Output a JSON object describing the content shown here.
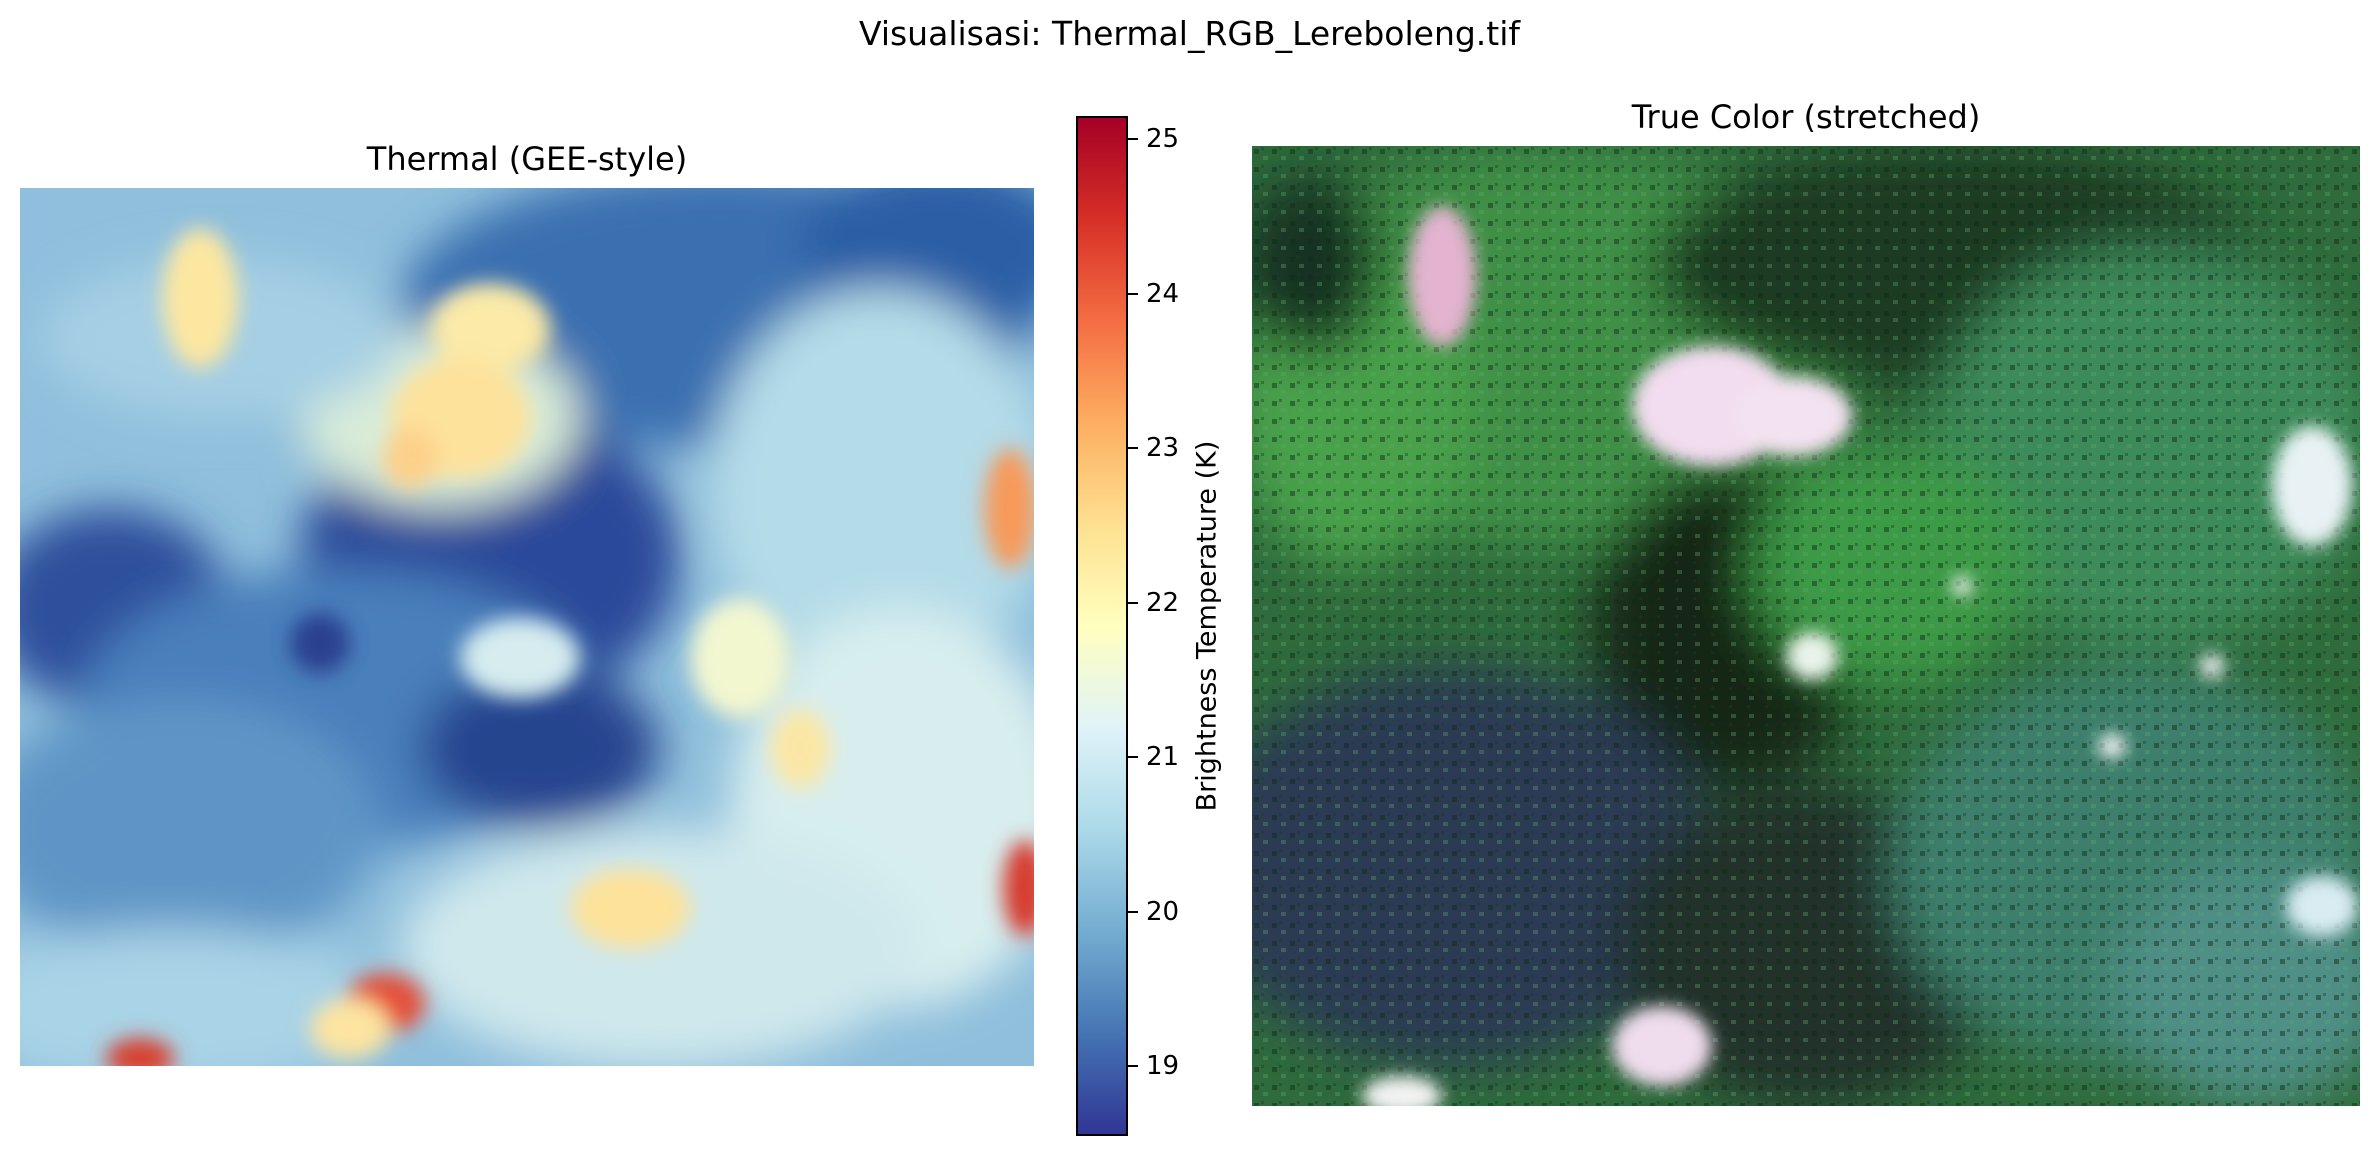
{
  "figure": {
    "suptitle": "Visualisasi: Thermal_RGB_Lereboleng.tif"
  },
  "thermal_panel": {
    "title": "Thermal (GEE-style)",
    "colormap": [
      "#313695",
      "#4575b4",
      "#74add1",
      "#abd9e9",
      "#e0f3f8",
      "#ffffbf",
      "#fee090",
      "#fdae61",
      "#f46d43",
      "#d73027",
      "#a50026"
    ]
  },
  "colorbar": {
    "label": "Brightness Temperature (K)",
    "vmin": 18.55,
    "vmax": 25.15,
    "ticks": [
      "19",
      "20",
      "21",
      "22",
      "23",
      "24",
      "25"
    ]
  },
  "truecolor_panel": {
    "title": "True Color (stretched)"
  }
}
